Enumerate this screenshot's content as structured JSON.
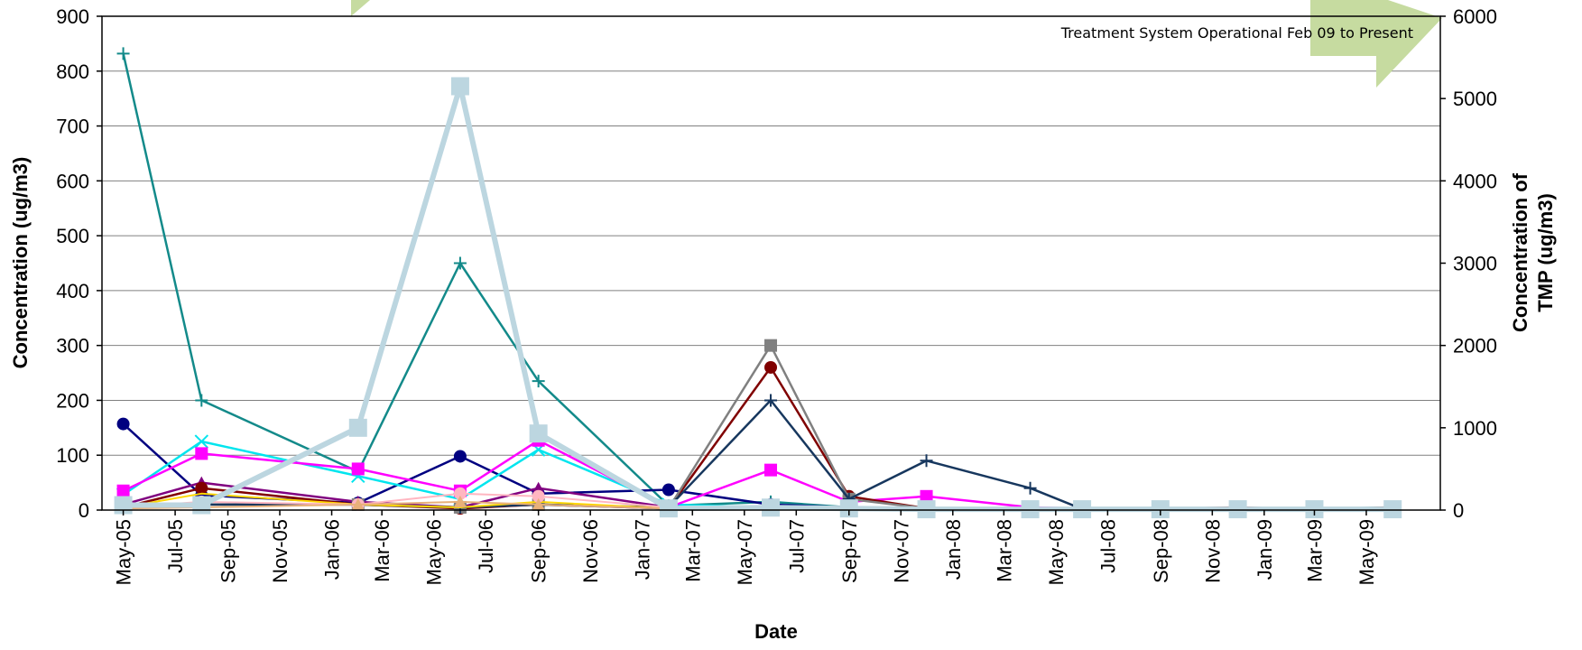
{
  "chart_data": {
    "type": "line",
    "xlabel": "Date",
    "ylabel": "Concentration (ug/m3)",
    "y2label_lines": [
      "Concentration of",
      "TMP (ug/m3)"
    ],
    "annotation": "Treatment System Operational Feb 09 to Present",
    "ylim": [
      0,
      900
    ],
    "y2lim": [
      0,
      6000
    ],
    "yticks": [
      0,
      100,
      200,
      300,
      400,
      500,
      600,
      700,
      800,
      900
    ],
    "y2ticks": [
      0,
      1000,
      2000,
      3000,
      4000,
      5000,
      6000
    ],
    "xticks": [
      "May-05",
      "Jul-05",
      "Sep-05",
      "Nov-05",
      "Jan-06",
      "Mar-06",
      "May-06",
      "Jul-06",
      "Sep-06",
      "Nov-06",
      "Jan-07",
      "Mar-07",
      "May-07",
      "Jul-07",
      "Sep-07",
      "Nov-07",
      "Jan-08",
      "Mar-08",
      "May-08",
      "Jul-08",
      "Sep-08",
      "Nov-08",
      "Jan-09",
      "Mar-09",
      "May-09"
    ],
    "x": [
      "2005-05-01",
      "2005-08-01",
      "2006-02-01",
      "2006-06-01",
      "2006-09-01",
      "2007-02-01",
      "2007-06-01",
      "2007-09-01",
      "2007-12-01",
      "2008-04-01",
      "2008-06-01",
      "2008-09-01",
      "2008-12-01",
      "2009-03-01",
      "2009-06-01"
    ],
    "series": [
      {
        "color": "#138a8a",
        "marker": "plus",
        "axis": "left",
        "width": 2.5,
        "values": [
          832,
          200,
          70,
          450,
          235,
          8,
          15,
          5,
          3,
          2,
          1,
          1,
          1,
          2,
          5
        ]
      },
      {
        "color": "#000080",
        "marker": "circle",
        "axis": "left",
        "width": 2.5,
        "values": [
          157,
          27,
          13,
          98,
          30,
          37,
          10,
          5,
          3,
          2,
          2,
          1,
          1,
          1,
          3
        ]
      },
      {
        "color": "#00e5ee",
        "marker": "x",
        "axis": "left",
        "width": 2.5,
        "values": [
          28,
          125,
          62,
          20,
          110,
          10,
          5,
          3,
          2,
          1,
          1,
          1,
          1,
          1,
          1
        ]
      },
      {
        "color": "#ff00ff",
        "marker": "square",
        "axis": "left",
        "width": 2.5,
        "values": [
          35,
          103,
          75,
          35,
          127,
          5,
          73,
          15,
          25,
          5,
          3,
          2,
          2,
          2,
          2
        ]
      },
      {
        "color": "#800080",
        "marker": "triangle",
        "axis": "left",
        "width": 2.5,
        "values": [
          10,
          50,
          15,
          5,
          40,
          5,
          3,
          2,
          1,
          1,
          1,
          1,
          1,
          1,
          1
        ]
      },
      {
        "color": "#800000",
        "marker": "circle",
        "axis": "left",
        "width": 2.5,
        "values": [
          5,
          40,
          10,
          3,
          10,
          3,
          260,
          25,
          3,
          2,
          2,
          2,
          5,
          1,
          5
        ]
      },
      {
        "color": "#808080",
        "marker": "square",
        "axis": "left",
        "width": 2.5,
        "values": [
          5,
          10,
          10,
          5,
          10,
          3,
          300,
          20,
          3,
          2,
          2,
          2,
          2,
          1,
          2
        ]
      },
      {
        "color": "#17375e",
        "marker": "plus",
        "axis": "left",
        "width": 2.5,
        "values": [
          5,
          10,
          10,
          5,
          10,
          5,
          200,
          20,
          90,
          40,
          2,
          2,
          2,
          1,
          2
        ]
      },
      {
        "color": "#ffd700",
        "marker": "none",
        "axis": "left",
        "width": 2,
        "values": [
          5,
          30,
          10,
          5,
          15,
          3,
          5,
          3,
          2,
          2,
          2,
          2,
          2,
          1,
          2
        ]
      },
      {
        "color": "#ffb6c1",
        "marker": "circle",
        "axis": "left",
        "width": 2,
        "values": [
          5,
          15,
          10,
          30,
          25,
          5,
          5,
          3,
          2,
          2,
          2,
          2,
          2,
          1,
          2
        ]
      },
      {
        "color": "#e8b07a",
        "marker": "triangle",
        "axis": "left",
        "width": 2,
        "values": [
          3,
          5,
          10,
          15,
          10,
          3,
          3,
          2,
          2,
          1,
          1,
          1,
          1,
          1,
          1
        ]
      },
      {
        "color": "#bcd6e0",
        "marker": "square",
        "axis": "right",
        "width": 6,
        "values": [
          60,
          60,
          1000,
          5150,
          930,
          20,
          30,
          20,
          10,
          10,
          10,
          10,
          10,
          10,
          10
        ]
      }
    ]
  }
}
